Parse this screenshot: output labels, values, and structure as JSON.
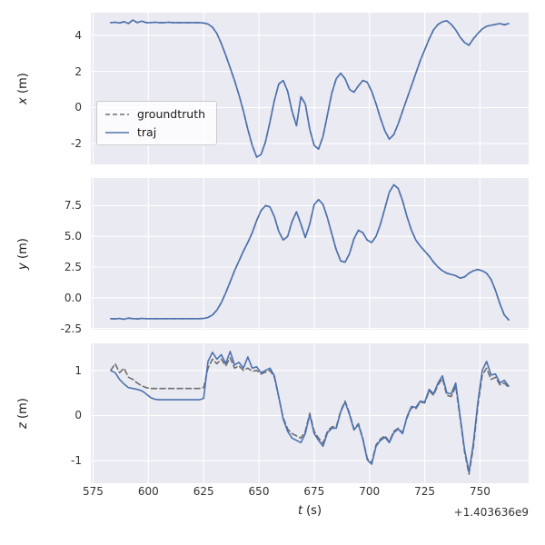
{
  "colors": {
    "figure_bg": "#ffffff",
    "axes_bg": "#eaeaf2",
    "grid": "#ffffff",
    "tick_text": "#333333",
    "traj_blue": "#4c72b0",
    "groundtruth_gray": "#6e6e6e"
  },
  "chart_data": {
    "type": "line",
    "title": "",
    "xlabel_var": "t",
    "xlabel_unit": "(s)",
    "x_offset_text": "+1.403636e9",
    "xlim": [
      574,
      772
    ],
    "x_ticks": [
      575,
      600,
      625,
      650,
      675,
      700,
      725,
      750
    ],
    "grid": true,
    "legend_position": "upper-left-inside-first-subplot",
    "legend": [
      {
        "label": "groundtruth",
        "color": "#6e6e6e",
        "dash": true
      },
      {
        "label": "traj",
        "color": "#4c72b0",
        "dash": false
      }
    ],
    "t": [
      583,
      585,
      587,
      589,
      591,
      593,
      595,
      597,
      599,
      601,
      603,
      605,
      607,
      609,
      611,
      613,
      615,
      617,
      619,
      621,
      623,
      625,
      627,
      629,
      631,
      633,
      635,
      637,
      639,
      641,
      643,
      645,
      647,
      649,
      651,
      653,
      655,
      657,
      659,
      661,
      663,
      665,
      667,
      669,
      671,
      673,
      675,
      677,
      679,
      681,
      683,
      685,
      687,
      689,
      691,
      693,
      695,
      697,
      699,
      701,
      703,
      705,
      707,
      709,
      711,
      713,
      715,
      717,
      719,
      721,
      723,
      725,
      727,
      729,
      731,
      733,
      735,
      737,
      739,
      741,
      743,
      745,
      747,
      749,
      751,
      753,
      755,
      757,
      759,
      761,
      763
    ],
    "subplots": [
      {
        "ylabel_var": "x",
        "ylabel_unit": "(m)",
        "ylim": [
          -3.15,
          5.25
        ],
        "y_ticks": [
          "-2",
          "0",
          "2",
          "4"
        ],
        "series": [
          {
            "name": "groundtruth",
            "values": [
              4.7,
              4.72,
              4.68,
              4.75,
              4.65,
              4.85,
              4.7,
              4.78,
              4.7,
              4.7,
              4.72,
              4.7,
              4.7,
              4.72,
              4.7,
              4.7,
              4.7,
              4.7,
              4.7,
              4.7,
              4.7,
              4.68,
              4.62,
              4.45,
              4.1,
              3.55,
              2.9,
              2.2,
              1.5,
              0.7,
              -0.2,
              -1.2,
              -2.1,
              -2.75,
              -2.6,
              -1.9,
              -0.8,
              0.4,
              1.3,
              1.5,
              0.9,
              -0.2,
              -1.0,
              0.6,
              0.2,
              -1.2,
              -2.1,
              -2.3,
              -1.6,
              -0.4,
              0.8,
              1.6,
              1.9,
              1.6,
              1.0,
              0.85,
              1.2,
              1.5,
              1.4,
              0.9,
              0.2,
              -0.6,
              -1.3,
              -1.75,
              -1.5,
              -0.9,
              -0.2,
              0.5,
              1.2,
              1.9,
              2.6,
              3.2,
              3.8,
              4.3,
              4.6,
              4.75,
              4.8,
              4.6,
              4.3,
              3.9,
              3.6,
              3.45,
              3.8,
              4.1,
              4.35,
              4.5,
              4.55,
              4.6,
              4.65,
              4.58,
              4.65
            ]
          },
          {
            "name": "traj",
            "values": [
              4.7,
              4.72,
              4.68,
              4.75,
              4.65,
              4.85,
              4.7,
              4.78,
              4.7,
              4.7,
              4.72,
              4.7,
              4.7,
              4.72,
              4.7,
              4.7,
              4.7,
              4.7,
              4.7,
              4.7,
              4.7,
              4.68,
              4.62,
              4.45,
              4.1,
              3.55,
              2.9,
              2.2,
              1.5,
              0.7,
              -0.2,
              -1.2,
              -2.1,
              -2.75,
              -2.6,
              -1.9,
              -0.8,
              0.4,
              1.3,
              1.5,
              0.9,
              -0.2,
              -1.0,
              0.6,
              0.2,
              -1.2,
              -2.1,
              -2.3,
              -1.6,
              -0.4,
              0.8,
              1.6,
              1.9,
              1.6,
              1.0,
              0.85,
              1.2,
              1.5,
              1.4,
              0.9,
              0.2,
              -0.6,
              -1.3,
              -1.75,
              -1.5,
              -0.9,
              -0.2,
              0.5,
              1.2,
              1.9,
              2.6,
              3.2,
              3.8,
              4.3,
              4.6,
              4.75,
              4.8,
              4.6,
              4.3,
              3.9,
              3.6,
              3.45,
              3.8,
              4.1,
              4.35,
              4.5,
              4.55,
              4.6,
              4.65,
              4.58,
              4.65
            ]
          }
        ]
      },
      {
        "ylabel_var": "y",
        "ylabel_unit": "(m)",
        "ylim": [
          -2.6,
          9.75
        ],
        "y_ticks": [
          "-2.5",
          "0.0",
          "2.5",
          "5.0",
          "7.5"
        ],
        "series": [
          {
            "name": "groundtruth",
            "values": [
              -1.7,
              -1.72,
              -1.68,
              -1.75,
              -1.65,
              -1.7,
              -1.72,
              -1.68,
              -1.7,
              -1.7,
              -1.7,
              -1.7,
              -1.7,
              -1.7,
              -1.7,
              -1.7,
              -1.7,
              -1.7,
              -1.7,
              -1.7,
              -1.7,
              -1.68,
              -1.6,
              -1.4,
              -1.0,
              -0.4,
              0.4,
              1.3,
              2.2,
              3.0,
              3.8,
              4.5,
              5.3,
              6.3,
              7.1,
              7.5,
              7.4,
              6.6,
              5.4,
              4.7,
              5.0,
              6.2,
              7.0,
              6.0,
              4.9,
              6.0,
              7.6,
              8.0,
              7.6,
              6.5,
              5.2,
              3.9,
              3.0,
              2.9,
              3.6,
              4.8,
              5.5,
              5.3,
              4.7,
              4.5,
              5.0,
              6.0,
              7.3,
              8.6,
              9.2,
              8.9,
              7.9,
              6.6,
              5.5,
              4.7,
              4.2,
              3.8,
              3.4,
              2.9,
              2.5,
              2.2,
              2.0,
              1.9,
              1.8,
              1.6,
              1.7,
              2.0,
              2.2,
              2.3,
              2.2,
              2.0,
              1.5,
              0.6,
              -0.5,
              -1.4,
              -1.8
            ]
          },
          {
            "name": "traj",
            "values": [
              -1.7,
              -1.72,
              -1.68,
              -1.75,
              -1.65,
              -1.7,
              -1.72,
              -1.68,
              -1.7,
              -1.7,
              -1.7,
              -1.7,
              -1.7,
              -1.7,
              -1.7,
              -1.7,
              -1.7,
              -1.7,
              -1.7,
              -1.7,
              -1.7,
              -1.68,
              -1.6,
              -1.4,
              -1.0,
              -0.4,
              0.4,
              1.3,
              2.2,
              3.0,
              3.8,
              4.5,
              5.3,
              6.3,
              7.1,
              7.5,
              7.4,
              6.6,
              5.4,
              4.7,
              5.0,
              6.2,
              7.0,
              6.0,
              4.9,
              6.0,
              7.6,
              8.0,
              7.6,
              6.5,
              5.2,
              3.9,
              3.0,
              2.9,
              3.6,
              4.8,
              5.5,
              5.3,
              4.7,
              4.5,
              5.0,
              6.0,
              7.3,
              8.6,
              9.2,
              8.9,
              7.9,
              6.6,
              5.5,
              4.7,
              4.2,
              3.8,
              3.4,
              2.9,
              2.5,
              2.2,
              2.0,
              1.9,
              1.8,
              1.6,
              1.7,
              2.0,
              2.2,
              2.3,
              2.2,
              2.0,
              1.5,
              0.6,
              -0.5,
              -1.4,
              -1.8
            ]
          }
        ]
      },
      {
        "ylabel_var": "z",
        "ylabel_unit": "(m)",
        "ylim": [
          -1.5,
          1.6
        ],
        "y_ticks": [
          "-1",
          "0",
          "1"
        ],
        "series": [
          {
            "name": "groundtruth",
            "values": [
              1.0,
              1.15,
              0.95,
              1.05,
              0.85,
              0.8,
              0.72,
              0.66,
              0.62,
              0.6,
              0.6,
              0.6,
              0.6,
              0.6,
              0.6,
              0.6,
              0.6,
              0.6,
              0.6,
              0.6,
              0.6,
              0.62,
              1.05,
              1.25,
              1.15,
              1.25,
              1.1,
              1.28,
              1.05,
              1.1,
              1.0,
              1.05,
              0.98,
              1.0,
              0.92,
              0.96,
              1.0,
              0.85,
              0.4,
              -0.05,
              -0.3,
              -0.4,
              -0.45,
              -0.5,
              -0.35,
              0.05,
              -0.35,
              -0.5,
              -0.62,
              -0.35,
              -0.25,
              -0.25,
              0.1,
              0.32,
              0.05,
              -0.3,
              -0.18,
              -0.5,
              -0.95,
              -1.05,
              -0.65,
              -0.52,
              -0.45,
              -0.58,
              -0.35,
              -0.28,
              -0.38,
              -0.05,
              0.18,
              0.15,
              0.3,
              0.28,
              0.55,
              0.45,
              0.68,
              0.82,
              0.45,
              0.42,
              0.65,
              -0.05,
              -0.8,
              -1.3,
              -0.7,
              0.2,
              0.9,
              1.05,
              0.8,
              0.85,
              0.68,
              0.72,
              0.62
            ]
          },
          {
            "name": "traj",
            "values": [
              1.0,
              0.95,
              0.8,
              0.7,
              0.62,
              0.6,
              0.58,
              0.55,
              0.48,
              0.4,
              0.36,
              0.35,
              0.35,
              0.35,
              0.35,
              0.35,
              0.35,
              0.35,
              0.35,
              0.35,
              0.35,
              0.38,
              1.2,
              1.4,
              1.25,
              1.35,
              1.15,
              1.42,
              1.12,
              1.18,
              1.05,
              1.3,
              1.05,
              1.08,
              0.95,
              1.0,
              1.05,
              0.88,
              0.42,
              -0.08,
              -0.35,
              -0.5,
              -0.55,
              -0.6,
              -0.4,
              0.02,
              -0.4,
              -0.55,
              -0.68,
              -0.38,
              -0.28,
              -0.28,
              0.08,
              0.3,
              0.02,
              -0.32,
              -0.2,
              -0.52,
              -0.98,
              -1.08,
              -0.68,
              -0.55,
              -0.48,
              -0.6,
              -0.38,
              -0.3,
              -0.4,
              -0.02,
              0.2,
              0.18,
              0.32,
              0.3,
              0.58,
              0.48,
              0.72,
              0.88,
              0.5,
              0.48,
              0.72,
              0.0,
              -0.75,
              -1.25,
              -0.62,
              0.28,
              1.0,
              1.2,
              0.9,
              0.92,
              0.72,
              0.78,
              0.65
            ]
          }
        ]
      }
    ]
  }
}
